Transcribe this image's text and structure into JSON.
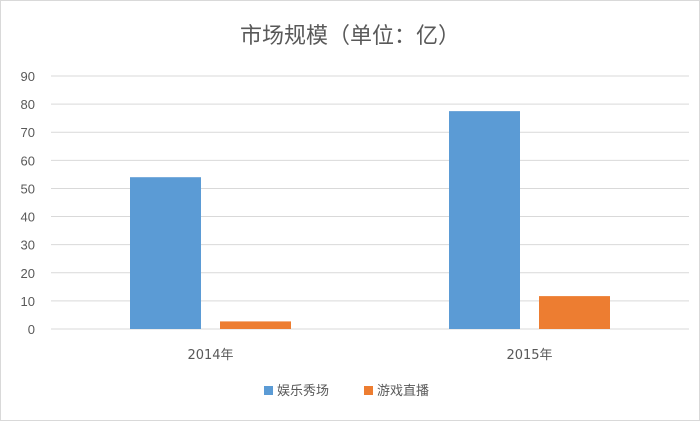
{
  "chart_data": {
    "type": "bar",
    "title": "市场规模（单位：亿）",
    "categories": [
      "2014年",
      "2015年"
    ],
    "series": [
      {
        "name": "娱乐秀场",
        "values": [
          54,
          77.5
        ],
        "color": "#5b9bd5"
      },
      {
        "name": "游戏直播",
        "values": [
          2.7,
          11.7
        ],
        "color": "#ed7d31"
      }
    ],
    "xlabel": "",
    "ylabel": "",
    "ylim": [
      0,
      90
    ],
    "yticks": [
      0,
      10,
      20,
      30,
      40,
      50,
      60,
      70,
      80,
      90
    ],
    "grid": true,
    "legend": "bottom"
  }
}
